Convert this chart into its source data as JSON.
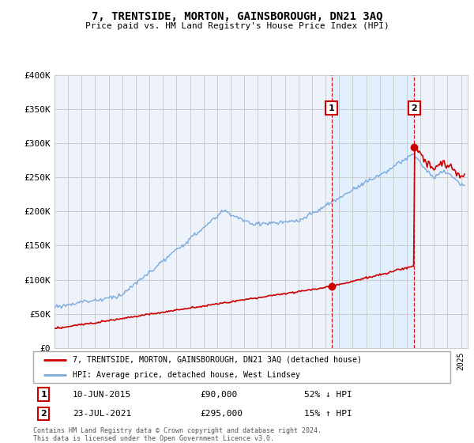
{
  "title": "7, TRENTSIDE, MORTON, GAINSBOROUGH, DN21 3AQ",
  "subtitle": "Price paid vs. HM Land Registry's House Price Index (HPI)",
  "ylabel_ticks": [
    "£0",
    "£50K",
    "£100K",
    "£150K",
    "£200K",
    "£250K",
    "£300K",
    "£350K",
    "£400K"
  ],
  "ytick_values": [
    0,
    50000,
    100000,
    150000,
    200000,
    250000,
    300000,
    350000,
    400000
  ],
  "ylim": [
    0,
    400000
  ],
  "xlim_start": 1995.0,
  "xlim_end": 2025.5,
  "sale1": {
    "year": 2015.44,
    "price": 90000,
    "label": "1",
    "date": "10-JUN-2015",
    "amount": "£90,000",
    "pct": "52% ↓ HPI"
  },
  "sale2": {
    "year": 2021.55,
    "price": 295000,
    "label": "2",
    "date": "23-JUL-2021",
    "amount": "£295,000",
    "pct": "15% ↑ HPI"
  },
  "legend1": "7, TRENTSIDE, MORTON, GAINSBOROUGH, DN21 3AQ (detached house)",
  "legend2": "HPI: Average price, detached house, West Lindsey",
  "footnote": "Contains HM Land Registry data © Crown copyright and database right 2024.\nThis data is licensed under the Open Government Licence v3.0.",
  "line_color_red": "#cc0000",
  "line_color_blue": "#7aaadd",
  "shade_color": "#ddeeff",
  "grid_color": "#cccccc",
  "plot_bg": "#eef2fa"
}
